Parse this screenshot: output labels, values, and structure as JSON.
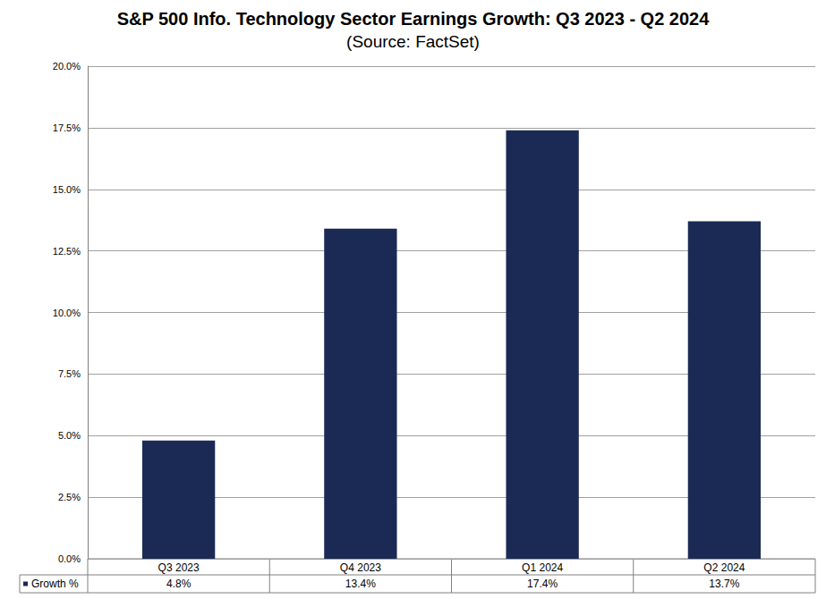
{
  "chart_data": {
    "type": "bar",
    "title": "S&P 500 Info. Technology Sector Earnings Growth: Q3 2023 - Q2 2024",
    "subtitle": "(Source: FactSet)",
    "categories": [
      "Q3 2023",
      "Q4 2023",
      "Q1 2024",
      "Q2 2024"
    ],
    "series": [
      {
        "name": "Growth %",
        "color": "#1b2a55",
        "values": [
          4.8,
          13.4,
          17.4,
          13.7
        ],
        "value_labels": [
          "4.8%",
          "13.4%",
          "17.4%",
          "13.7%"
        ]
      }
    ],
    "ylim": [
      0,
      20
    ],
    "yticks": [
      {
        "value": 0,
        "label": "0.0%"
      },
      {
        "value": 2.5,
        "label": "2.5%"
      },
      {
        "value": 5,
        "label": "5.0%"
      },
      {
        "value": 7.5,
        "label": "7.5%"
      },
      {
        "value": 10,
        "label": "10.0%"
      },
      {
        "value": 12.5,
        "label": "12.5%"
      },
      {
        "value": 15,
        "label": "15.0%"
      },
      {
        "value": 17.5,
        "label": "17.5%"
      },
      {
        "value": 20,
        "label": "20.0%"
      }
    ],
    "grid": true
  }
}
